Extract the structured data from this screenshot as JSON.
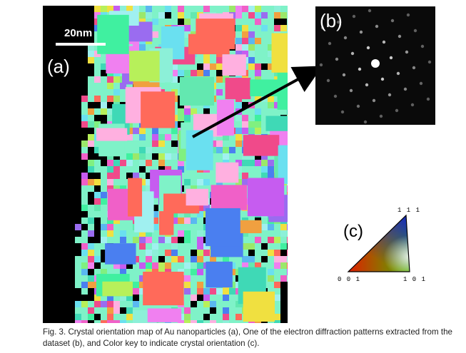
{
  "figure": {
    "panel_a": {
      "label": "(a)",
      "scalebar_label": "20nm"
    },
    "panel_b": {
      "label": "(b)"
    },
    "panel_c": {
      "label": "(c)",
      "vertex_top": "1 1 1",
      "vertex_left": "0 0 1",
      "vertex_right": "1 0 1"
    },
    "caption": "Fig. 3. Crystal orientation map of Au nanoparticles (a), One of the electron diffraction patterns extracted from the dataset (b), and Color key to indicate crystal orientation (c)."
  }
}
